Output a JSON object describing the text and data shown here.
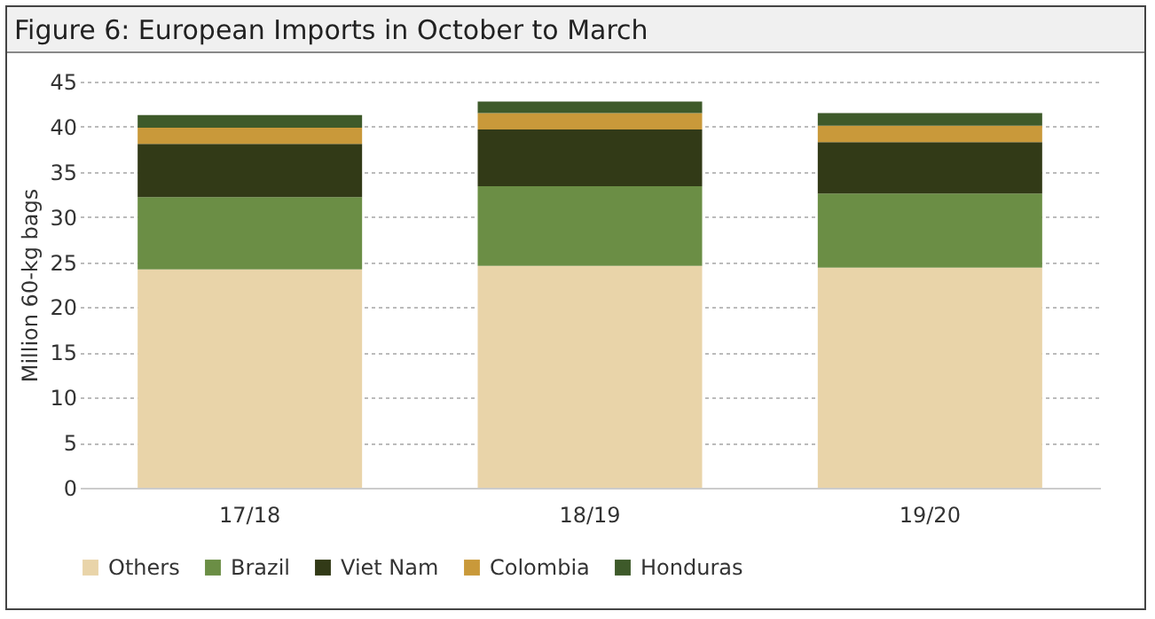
{
  "chart_data": {
    "type": "bar",
    "title": "Figure 6: European Imports in October to March",
    "ylabel": "Million 60-kg bags",
    "categories": [
      "17/18",
      "18/19",
      "19/20"
    ],
    "stacked": true,
    "series": [
      {
        "name": "Others",
        "color": "#e9d4a9",
        "values": [
          24.2,
          24.6,
          24.4
        ]
      },
      {
        "name": "Brazil",
        "color": "#6b8e45",
        "values": [
          8.0,
          8.8,
          8.2
        ]
      },
      {
        "name": "Viet Nam",
        "color": "#323a17",
        "values": [
          5.9,
          6.3,
          5.7
        ]
      },
      {
        "name": "Colombia",
        "color": "#c9993a",
        "values": [
          1.8,
          1.8,
          1.8
        ]
      },
      {
        "name": "Honduras",
        "color": "#3e5a2a",
        "values": [
          1.4,
          1.3,
          1.4
        ]
      }
    ],
    "ylim": [
      0,
      45
    ],
    "yticks": [
      0,
      5,
      10,
      15,
      20,
      25,
      30,
      35,
      40,
      45
    ],
    "grid": "y",
    "legend": "bottom"
  }
}
